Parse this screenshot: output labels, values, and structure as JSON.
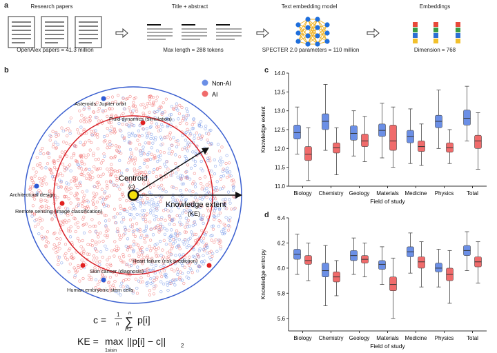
{
  "panel_a": {
    "label": "a",
    "steps": [
      {
        "title": "Research papers",
        "caption": "OpenAlex papers = 41.3 million"
      },
      {
        "title": "Title + abstract",
        "caption": "Max length = 288 tokens"
      },
      {
        "title": "Text embedding model",
        "caption": "SPECTER 2.0 parameters = 110 million"
      },
      {
        "title": "Embeddings",
        "caption": "Dimension = 768"
      }
    ],
    "colors": {
      "nn_node": "#1f6fdc",
      "nn_edge": "#f0b323",
      "embed": [
        "#e8493a",
        "#3b9c45",
        "#2d6fd3",
        "#f2c02b"
      ]
    }
  },
  "panel_b": {
    "label": "b",
    "legend": [
      {
        "name": "Non-AI",
        "color": "#6b8fe6"
      },
      {
        "name": "AI",
        "color": "#f06b6b"
      }
    ],
    "annotations": {
      "asteroids": "Asteroids, Jupiter orbit",
      "fluid": "Fluid dynamics (simulation)",
      "architectural": "Architectural design",
      "remote": "Remote sensing (image classification)",
      "heart": "Heart failure (risk prediction)",
      "skin": "Skin cancer (diagnosis)",
      "stem": "Human embryonic stem cells",
      "centroid": "Centroid",
      "centroid_symbol": "(c)",
      "ke": "Knowledge extent",
      "ke_symbol": "(KE)"
    },
    "formula_c": {
      "lhs": "c =",
      "frac_num": "1",
      "frac_den": "n",
      "sum_top": "n",
      "sum_bottom": "i=1",
      "term": "p[i]"
    },
    "formula_ke": {
      "lhs": "KE =",
      "op": "max",
      "sub": "1≤i≤n",
      "term": "||p[i] − c||",
      "norm_sub": "2"
    }
  },
  "chart_data": [
    {
      "panel": "c",
      "type": "boxplot",
      "ylabel": "Knowledge extent",
      "xlabel": "Field of study",
      "ylim": [
        11.0,
        14.0
      ],
      "yticks": [
        "11.0",
        "11.5",
        "12.0",
        "12.5",
        "13.0",
        "13.5",
        "14.0"
      ],
      "categories": [
        "Biology",
        "Chemistry",
        "Geology",
        "Materials",
        "Medicine",
        "Physics",
        "Total"
      ],
      "series": [
        {
          "name": "Non-AI",
          "color": "#6b8fe6",
          "boxes": [
            {
              "wlo": 11.85,
              "q1": 12.25,
              "med": 12.42,
              "q3": 12.62,
              "whi": 13.1
            },
            {
              "wlo": 11.95,
              "q1": 12.5,
              "med": 12.72,
              "q3": 12.92,
              "whi": 13.7
            },
            {
              "wlo": 11.8,
              "q1": 12.22,
              "med": 12.4,
              "q3": 12.6,
              "whi": 13.0
            },
            {
              "wlo": 11.75,
              "q1": 12.32,
              "med": 12.48,
              "q3": 12.65,
              "whi": 13.2
            },
            {
              "wlo": 11.6,
              "q1": 12.15,
              "med": 12.32,
              "q3": 12.48,
              "whi": 13.05
            },
            {
              "wlo": 12.0,
              "q1": 12.55,
              "med": 12.72,
              "q3": 12.88,
              "whi": 13.55
            },
            {
              "wlo": 12.2,
              "q1": 12.62,
              "med": 12.8,
              "q3": 13.02,
              "whi": 13.65
            }
          ]
        },
        {
          "name": "AI",
          "color": "#f06b6b",
          "boxes": [
            {
              "wlo": 11.15,
              "q1": 11.68,
              "med": 11.85,
              "q3": 12.05,
              "whi": 12.55
            },
            {
              "wlo": 11.3,
              "q1": 11.88,
              "med": 12.02,
              "q3": 12.15,
              "whi": 12.55
            },
            {
              "wlo": 11.65,
              "q1": 12.05,
              "med": 12.2,
              "q3": 12.38,
              "whi": 12.85
            },
            {
              "wlo": 11.5,
              "q1": 11.95,
              "med": 12.2,
              "q3": 12.62,
              "whi": 13.1
            },
            {
              "wlo": 11.55,
              "q1": 11.92,
              "med": 12.05,
              "q3": 12.2,
              "whi": 12.65
            },
            {
              "wlo": 11.6,
              "q1": 11.9,
              "med": 12.02,
              "q3": 12.15,
              "whi": 12.5
            },
            {
              "wlo": 11.45,
              "q1": 12.0,
              "med": 12.2,
              "q3": 12.35,
              "whi": 12.95
            }
          ]
        }
      ]
    },
    {
      "panel": "d",
      "type": "boxplot",
      "ylabel": "Knowledge entropy",
      "xlabel": "Field of study",
      "ylim": [
        5.5,
        6.4
      ],
      "yticks": [
        "5.6",
        "5.8",
        "6.0",
        "6.2",
        "6.4"
      ],
      "categories": [
        "Biology",
        "Chemistry",
        "Geology",
        "Materials",
        "Medicine",
        "Physics",
        "Total"
      ],
      "series": [
        {
          "name": "Non-AI",
          "color": "#6b8fe6",
          "boxes": [
            {
              "wlo": 5.95,
              "q1": 6.07,
              "med": 6.11,
              "q3": 6.15,
              "whi": 6.27
            },
            {
              "wlo": 5.7,
              "q1": 5.93,
              "med": 5.98,
              "q3": 6.04,
              "whi": 6.18
            },
            {
              "wlo": 5.95,
              "q1": 6.06,
              "med": 6.1,
              "q3": 6.14,
              "whi": 6.24
            },
            {
              "wlo": 5.87,
              "q1": 5.99,
              "med": 6.03,
              "q3": 6.06,
              "whi": 6.17
            },
            {
              "wlo": 5.96,
              "q1": 6.09,
              "med": 6.13,
              "q3": 6.17,
              "whi": 6.28
            },
            {
              "wlo": 5.85,
              "q1": 5.97,
              "med": 6.0,
              "q3": 6.04,
              "whi": 6.15
            },
            {
              "wlo": 5.98,
              "q1": 6.1,
              "med": 6.14,
              "q3": 6.18,
              "whi": 6.29
            }
          ]
        },
        {
          "name": "AI",
          "color": "#f06b6b",
          "boxes": [
            {
              "wlo": 5.9,
              "q1": 6.03,
              "med": 6.06,
              "q3": 6.1,
              "whi": 6.2
            },
            {
              "wlo": 5.78,
              "q1": 5.89,
              "med": 5.93,
              "q3": 5.97,
              "whi": 6.06
            },
            {
              "wlo": 5.93,
              "q1": 6.04,
              "med": 6.07,
              "q3": 6.1,
              "whi": 6.2
            },
            {
              "wlo": 5.6,
              "q1": 5.82,
              "med": 5.87,
              "q3": 5.93,
              "whi": 6.08
            },
            {
              "wlo": 5.85,
              "q1": 6.0,
              "med": 6.05,
              "q3": 6.09,
              "whi": 6.21
            },
            {
              "wlo": 5.72,
              "q1": 5.9,
              "med": 5.95,
              "q3": 6.0,
              "whi": 6.14
            },
            {
              "wlo": 5.88,
              "q1": 6.01,
              "med": 6.05,
              "q3": 6.09,
              "whi": 6.21
            }
          ]
        }
      ]
    }
  ]
}
